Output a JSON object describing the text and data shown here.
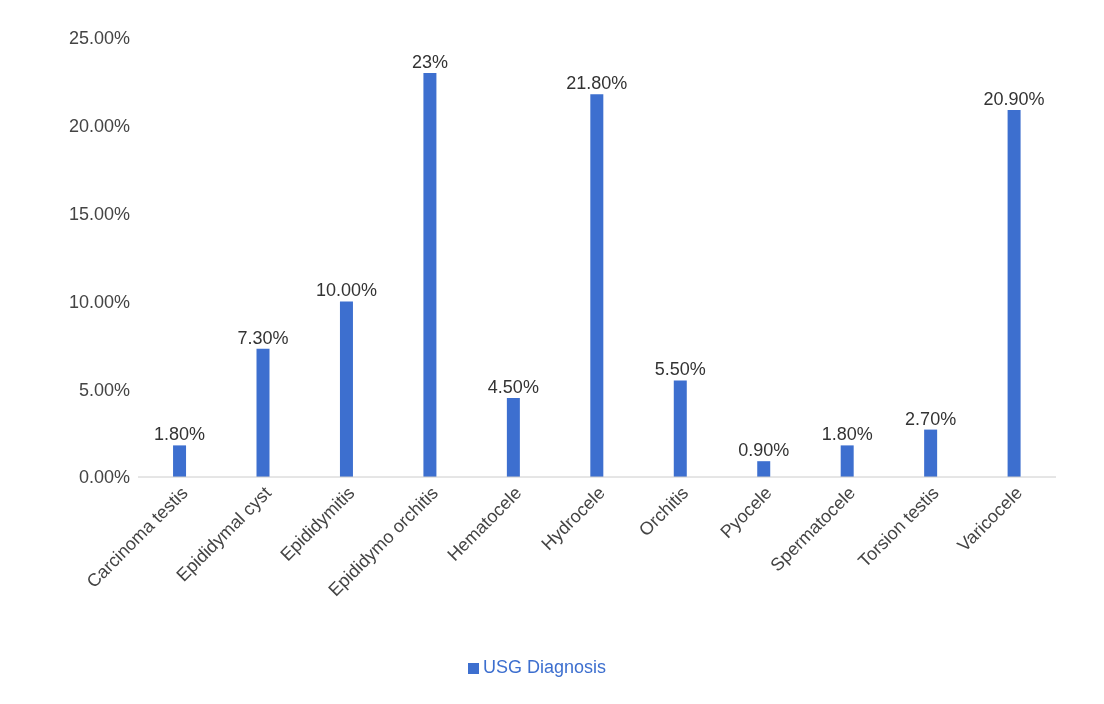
{
  "chart_data": {
    "type": "bar",
    "categories": [
      "Carcinoma testis",
      "Epididymal cyst",
      "Epididymitis",
      "Epididymo orchitis",
      "Hematocele",
      "Hydrocele",
      "Orchitis",
      "Pyocele",
      "Spermatocele",
      "Torsion testis",
      "Varicocele"
    ],
    "series": [
      {
        "name": "USG Diagnosis",
        "color": "#3d6fcf",
        "values": [
          1.8,
          7.3,
          10,
          23,
          4.5,
          21.8,
          5.5,
          0.9,
          1.8,
          2.7,
          20.9
        ],
        "value_labels": [
          "1.80%",
          "7.30%",
          "10.00%",
          "23%",
          "4.50%",
          "21.80%",
          "5.50%",
          "0.90%",
          "1.80%",
          "2.70%",
          "20.90%"
        ]
      }
    ],
    "ylim": [
      0,
      25
    ],
    "yticks": [
      {
        "value": 0,
        "label": "0.00%"
      },
      {
        "value": 5,
        "label": "5.00%"
      },
      {
        "value": 10,
        "label": "10.00%"
      },
      {
        "value": 15,
        "label": "15.00%"
      },
      {
        "value": 20,
        "label": "20.00%"
      },
      {
        "value": 25,
        "label": "25.00%"
      }
    ],
    "grid": false,
    "legend": "bottom"
  }
}
